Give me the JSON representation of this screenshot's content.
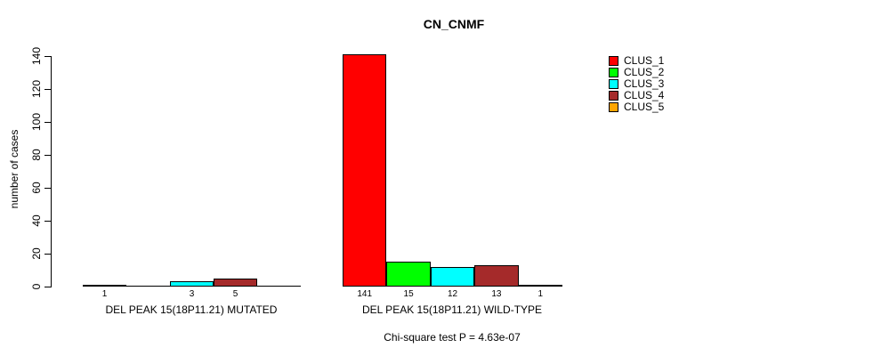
{
  "title": "CN_CNMF",
  "chart_data": {
    "type": "bar",
    "title": "CN_CNMF",
    "ylabel": "number of cases",
    "xlabel": "",
    "ylim": [
      0,
      140
    ],
    "yticks": [
      0,
      20,
      40,
      60,
      80,
      100,
      120,
      140
    ],
    "grid": false,
    "legend_position": "right",
    "series": [
      {
        "name": "CLUS_1",
        "color": "#FF0000"
      },
      {
        "name": "CLUS_2",
        "color": "#00FF00"
      },
      {
        "name": "CLUS_3",
        "color": "#00FFFF"
      },
      {
        "name": "CLUS_4",
        "color": "#A52A2A"
      },
      {
        "name": "CLUS_5",
        "color": "#FFA500"
      }
    ],
    "groups": [
      {
        "label": "DEL PEAK 15(18P11.21) MUTATED",
        "values": [
          1,
          0,
          3,
          5,
          0
        ]
      },
      {
        "label": "DEL PEAK 15(18P11.21) WILD-TYPE",
        "values": [
          141,
          15,
          12,
          13,
          1
        ]
      }
    ],
    "caption": "Chi-square test P = 4.63e-07"
  }
}
